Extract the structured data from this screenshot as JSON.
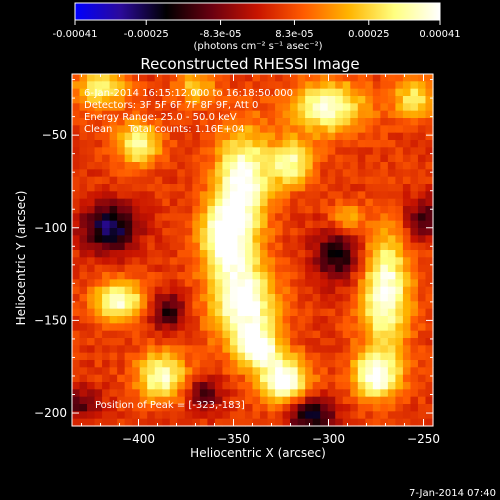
{
  "colorbar": {
    "tick_labels": [
      "-0.00041",
      "-0.00025",
      "-8.3e-05",
      "8.3e-05",
      "0.00025",
      "0.00041"
    ],
    "tick_values": [
      -0.00041,
      -0.00025,
      -8.3e-05,
      8.3e-05,
      0.00025,
      0.00041
    ],
    "range": [
      -0.00041,
      0.00041
    ],
    "unit_label": "(photons cm⁻² s⁻¹ asec⁻²)",
    "colormap": [
      "#0000ff",
      "#2b0a9a",
      "#000000",
      "#6a0010",
      "#c81400",
      "#ff5a00",
      "#ffb400",
      "#ffff80",
      "#ffffff"
    ]
  },
  "chart_data": {
    "type": "heatmap",
    "title": "Reconstructed RHESSI Image",
    "xlabel": "Heliocentric X (arcsec)",
    "ylabel": "Heliocentric Y (arcsec)",
    "xlim": [
      -435,
      -245
    ],
    "ylim": [
      -207,
      -17
    ],
    "xticks": [
      -400,
      -350,
      -300,
      -250
    ],
    "yticks": [
      -50,
      -100,
      -150,
      -200
    ],
    "xtick_labels": [
      "−400",
      "−350",
      "−300",
      "−250"
    ],
    "ytick_labels": [
      "−50",
      "−100",
      "−150",
      "−200"
    ],
    "value_range": [
      -0.00041,
      0.00041
    ],
    "peak": [
      -323,
      -183
    ],
    "annotations": {
      "time": "6-Jan-2014 16:15:12.000 to 16:18:50.000",
      "detectors": "Detectors: 3F 5F 6F 7F 8F 9F, Att 0",
      "energy": "Energy Range: 25.0 - 50.0 keV",
      "clean": "Clean     Total counts: 1.16E+04",
      "peak": "Position of Peak = [-323,-183]"
    },
    "sources": [
      {
        "x": -345,
        "y": -75,
        "sx": 10,
        "sy": 20,
        "a": 0.9
      },
      {
        "x": -355,
        "y": -105,
        "sx": 9,
        "sy": 14,
        "a": 0.85
      },
      {
        "x": -345,
        "y": -140,
        "sx": 12,
        "sy": 16,
        "a": 0.95
      },
      {
        "x": -323,
        "y": -183,
        "sx": 9,
        "sy": 9,
        "a": 1.0
      },
      {
        "x": -337,
        "y": -165,
        "sx": 8,
        "sy": 8,
        "a": 0.8
      },
      {
        "x": -300,
        "y": -35,
        "sx": 14,
        "sy": 10,
        "a": 0.8
      },
      {
        "x": -320,
        "y": -65,
        "sx": 8,
        "sy": 9,
        "a": 0.7
      },
      {
        "x": -270,
        "y": -135,
        "sx": 9,
        "sy": 22,
        "a": 0.9
      },
      {
        "x": -275,
        "y": -180,
        "sx": 9,
        "sy": 9,
        "a": 0.85
      },
      {
        "x": -410,
        "y": -140,
        "sx": 10,
        "sy": 8,
        "a": 0.8
      },
      {
        "x": -388,
        "y": -180,
        "sx": 9,
        "sy": 9,
        "a": 0.8
      },
      {
        "x": -400,
        "y": -55,
        "sx": 8,
        "sy": 8,
        "a": 0.75
      },
      {
        "x": -420,
        "y": -25,
        "sx": 10,
        "sy": 8,
        "a": 0.6
      },
      {
        "x": -255,
        "y": -30,
        "sx": 8,
        "sy": 8,
        "a": 0.55
      },
      {
        "x": -370,
        "y": -25,
        "sx": 7,
        "sy": 6,
        "a": 0.5
      },
      {
        "x": -290,
        "y": -95,
        "sx": 6,
        "sy": 6,
        "a": 0.4
      },
      {
        "x": -415,
        "y": -100,
        "sx": 10,
        "sy": 9,
        "a": -0.8
      },
      {
        "x": -295,
        "y": -115,
        "sx": 9,
        "sy": 10,
        "a": -0.6
      },
      {
        "x": -310,
        "y": -200,
        "sx": 9,
        "sy": 7,
        "a": -0.7
      },
      {
        "x": -385,
        "y": -145,
        "sx": 7,
        "sy": 7,
        "a": -0.55
      },
      {
        "x": -250,
        "y": -95,
        "sx": 7,
        "sy": 8,
        "a": -0.45
      },
      {
        "x": -430,
        "y": -195,
        "sx": 7,
        "sy": 6,
        "a": -0.4
      },
      {
        "x": -365,
        "y": -190,
        "sx": 6,
        "sy": 6,
        "a": -0.5
      }
    ]
  },
  "footer": {
    "timestamp": "7-Jan-2014 07:40"
  }
}
